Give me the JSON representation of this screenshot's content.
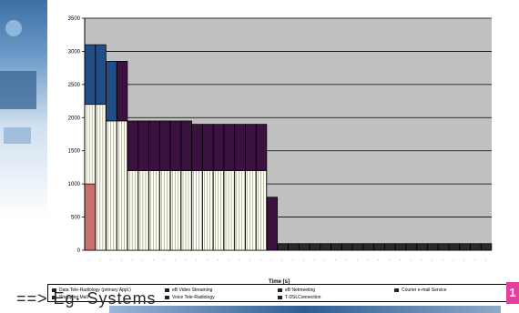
{
  "chart_data": {
    "type": "bar",
    "ylim": [
      0,
      3500
    ],
    "yticks": [
      "0",
      "500",
      "1000",
      "1500",
      "2000",
      "2500",
      "3000",
      "3500"
    ],
    "xlabel": "Time [s]",
    "grid": true,
    "legend_position": "bottom",
    "bars": [
      {
        "segments": [
          1000,
          1200,
          900
        ]
      },
      {
        "segments": [
          0,
          2200,
          900
        ]
      },
      {
        "segments": [
          0,
          1950,
          900
        ]
      },
      {
        "segments": [
          0,
          1950,
          900
        ]
      },
      {
        "segments": [
          0,
          1200,
          750
        ]
      },
      {
        "segments": [
          0,
          1200,
          750
        ]
      },
      {
        "segments": [
          0,
          1200,
          750
        ]
      },
      {
        "segments": [
          0,
          1200,
          750
        ]
      },
      {
        "segments": [
          0,
          1200,
          750
        ]
      },
      {
        "segments": [
          0,
          1200,
          750
        ]
      },
      {
        "segments": [
          0,
          1200,
          700
        ]
      },
      {
        "segments": [
          0,
          1200,
          700
        ]
      },
      {
        "segments": [
          0,
          1200,
          700
        ]
      },
      {
        "segments": [
          0,
          1200,
          700
        ]
      },
      {
        "segments": [
          0,
          1200,
          700
        ]
      },
      {
        "segments": [
          0,
          1200,
          700
        ]
      },
      {
        "segments": [
          0,
          1200,
          700
        ]
      },
      {
        "segments": [
          0,
          0,
          800
        ]
      },
      {
        "segments": [
          0,
          0,
          100
        ]
      },
      {
        "segments": [
          0,
          0,
          100
        ]
      },
      {
        "segments": [
          0,
          0,
          100
        ]
      },
      {
        "segments": [
          0,
          0,
          100
        ]
      },
      {
        "segments": [
          0,
          0,
          100
        ]
      },
      {
        "segments": [
          0,
          0,
          100
        ]
      },
      {
        "segments": [
          0,
          0,
          100
        ]
      },
      {
        "segments": [
          0,
          0,
          100
        ]
      },
      {
        "segments": [
          0,
          0,
          100
        ]
      },
      {
        "segments": [
          0,
          0,
          100
        ]
      },
      {
        "segments": [
          0,
          0,
          100
        ]
      },
      {
        "segments": [
          0,
          0,
          100
        ]
      },
      {
        "segments": [
          0,
          0,
          100
        ]
      },
      {
        "segments": [
          0,
          0,
          100
        ]
      },
      {
        "segments": [
          0,
          0,
          100
        ]
      },
      {
        "segments": [
          0,
          0,
          100
        ]
      },
      {
        "segments": [
          0,
          0,
          100
        ]
      },
      {
        "segments": [
          0,
          0,
          100
        ]
      },
      {
        "segments": [
          0,
          0,
          100
        ]
      },
      {
        "segments": [
          0,
          0,
          100
        ]
      }
    ],
    "segment_colors": [
      "#c8706a",
      "#fffff0",
      "#3b1140"
    ],
    "top_colors": {
      "0": "#1f4e89",
      "1": "#1f4e89",
      "2": "#1f4e89",
      "3": "#3b1140"
    },
    "legend": [
      {
        "label": "Data Tele-Radiology (primary Appl.)",
        "color": "#222"
      },
      {
        "label": "eB Video Streaming",
        "color": "#222"
      },
      {
        "label": "eB Netmeeting",
        "color": "#222"
      },
      {
        "label": "Courier e-mail Service",
        "color": "#222"
      },
      {
        "label": "Shopping Mall",
        "color": "#222"
      },
      {
        "label": "Voice Tele-Radiology",
        "color": "#222"
      },
      {
        "label": "T-DSLConnection",
        "color": "#222"
      }
    ]
  },
  "footer": {
    "text": "==> Eg· Systems",
    "slide_number": "1"
  },
  "colors": {
    "plot_bg": "#c0c0c0",
    "accent": "#e63f9b"
  }
}
